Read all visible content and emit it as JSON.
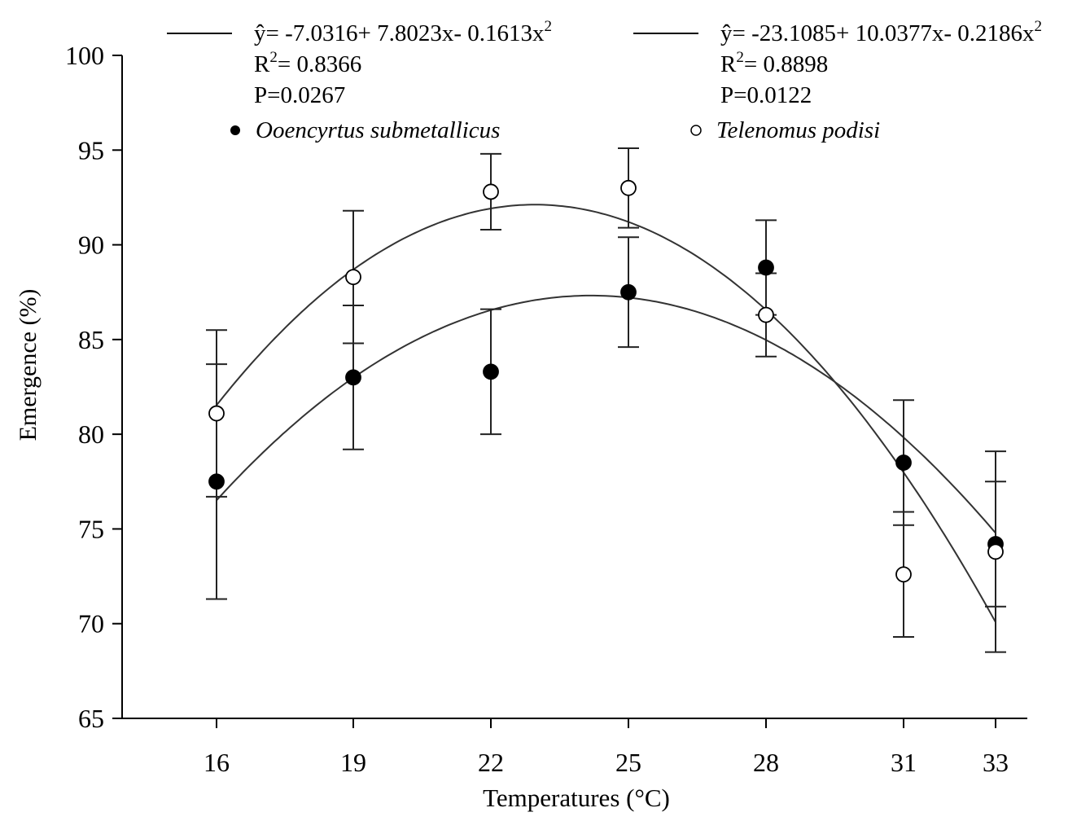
{
  "chart_data": {
    "type": "scatter",
    "x": [
      16,
      19,
      22,
      25,
      28,
      31,
      33
    ],
    "xlabel": "Temperatures (°C)",
    "ylabel": "Emergence (%)",
    "ylim": [
      65,
      100
    ],
    "yticks": [
      65,
      70,
      75,
      80,
      85,
      90,
      95,
      100
    ],
    "xticks": [
      16,
      19,
      22,
      25,
      28,
      31,
      33
    ],
    "grid": false,
    "legend_position": "top",
    "series": [
      {
        "name": "Ooencyrtus submetallicus",
        "marker": "filled-circle",
        "values": [
          77.5,
          83.0,
          83.3,
          87.5,
          88.8,
          78.5,
          74.2
        ],
        "errors": [
          6.2,
          3.8,
          3.3,
          2.9,
          2.5,
          3.3,
          3.3
        ],
        "fit": {
          "a": -7.0316,
          "b": 7.8023,
          "c": -0.1613
        },
        "equation": "ŷ= -7.0316+ 7.8023x- 0.1613x",
        "r2_label": "R",
        "r2_value": "= 0.8366",
        "p_label": "P=0.0267"
      },
      {
        "name": "Telenomus podisi",
        "marker": "open-circle",
        "values": [
          81.1,
          88.3,
          92.8,
          93.0,
          86.3,
          72.6,
          73.8
        ],
        "errors": [
          4.4,
          3.5,
          2.0,
          2.1,
          2.2,
          3.3,
          5.3
        ],
        "fit": {
          "a": -23.1085,
          "b": 10.0377,
          "c": -0.2186
        },
        "equation": "ŷ= -23.1085+ 10.0377x- 0.2186x",
        "r2_label": "R",
        "r2_value": "= 0.8898",
        "p_label": "P=0.0122"
      }
    ],
    "superscript": "2"
  }
}
